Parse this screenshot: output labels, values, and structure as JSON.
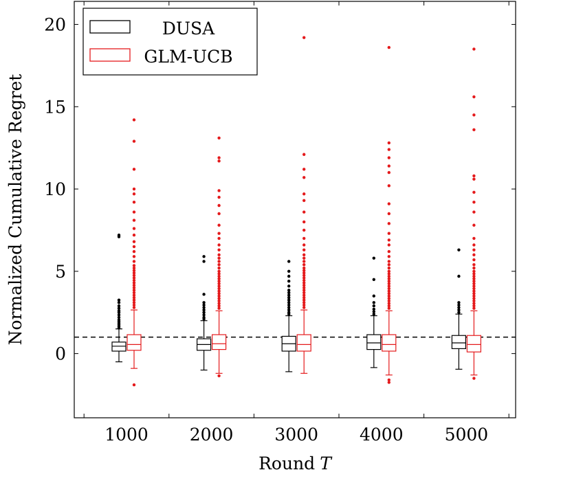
{
  "chart_data": {
    "type": "box",
    "categories": [
      "1000",
      "2000",
      "3000",
      "4000",
      "5000"
    ],
    "xlabel_text": "Round",
    "xlabel_var": "T",
    "ylabel": "Normalized Cumulative Regret",
    "ylim": [
      -3.9,
      21.4
    ],
    "yticks": [
      0,
      5,
      10,
      15,
      20
    ],
    "reference_line": 1.0,
    "legend_position": "top-left",
    "grid": false,
    "series": [
      {
        "name": "DUSA",
        "color": "#000000",
        "boxes": [
          {
            "q1": 0.15,
            "median": 0.45,
            "q3": 0.7,
            "whisker_low": -0.5,
            "whisker_high": 1.5,
            "outliers": [
              1.55,
              1.65,
              1.75,
              1.85,
              1.95,
              2.05,
              2.2,
              2.35,
              2.5,
              2.6,
              2.75,
              2.9,
              3.1,
              3.25,
              7.1,
              7.2
            ]
          },
          {
            "q1": 0.2,
            "median": 0.55,
            "q3": 0.9,
            "whisker_low": -1.0,
            "whisker_high": 2.0,
            "outliers": [
              2.1,
              2.2,
              2.35,
              2.5,
              2.65,
              2.8,
              2.95,
              3.1,
              3.6,
              5.6,
              5.9
            ]
          },
          {
            "q1": 0.15,
            "median": 0.6,
            "q3": 1.05,
            "whisker_low": -1.1,
            "whisker_high": 2.3,
            "outliers": [
              2.4,
              2.5,
              2.65,
              2.8,
              2.95,
              3.1,
              3.25,
              3.4,
              3.55,
              3.7,
              3.85,
              4.1,
              4.4,
              4.7,
              5.0,
              5.6
            ]
          },
          {
            "q1": 0.25,
            "median": 0.65,
            "q3": 1.15,
            "whisker_low": -0.85,
            "whisker_high": 2.3,
            "outliers": [
              2.4,
              2.55,
              2.7,
              2.9,
              3.1,
              3.5,
              4.5,
              5.8
            ]
          },
          {
            "q1": 0.3,
            "median": 0.65,
            "q3": 1.1,
            "whisker_low": -0.95,
            "whisker_high": 2.4,
            "outliers": [
              2.5,
              2.65,
              2.8,
              2.95,
              3.1,
              4.7,
              6.3
            ]
          }
        ]
      },
      {
        "name": "GLM-UCB",
        "color": "#e41a1c",
        "boxes": [
          {
            "q1": 0.2,
            "median": 0.55,
            "q3": 1.15,
            "whisker_low": -0.9,
            "whisker_high": 2.65,
            "outliers": [
              -1.9,
              2.8,
              2.95,
              3.1,
              3.25,
              3.4,
              3.55,
              3.7,
              3.85,
              4.0,
              4.15,
              4.3,
              4.45,
              4.6,
              4.75,
              4.9,
              5.05,
              5.2,
              5.35,
              5.6,
              5.9,
              6.2,
              6.5,
              6.8,
              7.2,
              7.6,
              8.1,
              8.6,
              9.2,
              9.7,
              10.0,
              11.2,
              12.9,
              14.2
            ]
          },
          {
            "q1": 0.25,
            "median": 0.6,
            "q3": 1.15,
            "whisker_low": -1.2,
            "whisker_high": 2.6,
            "outliers": [
              -1.35,
              2.75,
              2.9,
              3.05,
              3.2,
              3.35,
              3.5,
              3.65,
              3.8,
              3.95,
              4.1,
              4.25,
              4.4,
              4.55,
              4.7,
              4.85,
              5.0,
              5.2,
              5.4,
              5.6,
              5.8,
              6.0,
              6.3,
              6.6,
              7.0,
              7.3,
              7.8,
              8.5,
              9.0,
              9.5,
              9.9,
              11.7,
              11.9,
              13.1
            ]
          },
          {
            "q1": 0.15,
            "median": 0.55,
            "q3": 1.15,
            "whisker_low": -1.2,
            "whisker_high": 2.65,
            "outliers": [
              2.8,
              2.95,
              3.1,
              3.25,
              3.4,
              3.55,
              3.7,
              3.85,
              4.0,
              4.15,
              4.3,
              4.45,
              4.6,
              4.75,
              4.9,
              5.05,
              5.2,
              5.4,
              5.6,
              5.8,
              6.0,
              6.3,
              6.6,
              7.0,
              7.5,
              8.0,
              8.6,
              9.3,
              9.7,
              10.7,
              11.2,
              12.1,
              19.2
            ]
          },
          {
            "q1": 0.15,
            "median": 0.55,
            "q3": 1.15,
            "whisker_low": -1.3,
            "whisker_high": 2.6,
            "outliers": [
              -1.6,
              -1.75,
              2.75,
              2.9,
              3.05,
              3.2,
              3.35,
              3.5,
              3.65,
              3.8,
              3.95,
              4.1,
              4.25,
              4.4,
              4.55,
              4.7,
              4.85,
              5.0,
              5.2,
              5.4,
              5.6,
              5.9,
              6.2,
              6.6,
              6.9,
              7.3,
              7.9,
              8.5,
              9.1,
              10.2,
              11.0,
              11.4,
              11.9,
              12.4,
              12.8,
              18.6
            ]
          },
          {
            "q1": 0.1,
            "median": 0.55,
            "q3": 1.1,
            "whisker_low": -1.3,
            "whisker_high": 2.6,
            "outliers": [
              -1.5,
              2.75,
              2.9,
              3.05,
              3.2,
              3.35,
              3.5,
              3.65,
              3.8,
              3.95,
              4.1,
              4.25,
              4.4,
              4.55,
              4.7,
              4.85,
              5.0,
              5.2,
              5.4,
              5.7,
              6.0,
              6.3,
              6.6,
              7.0,
              7.8,
              8.6,
              9.2,
              9.8,
              10.6,
              10.8,
              13.6,
              14.5,
              15.6,
              18.5
            ]
          }
        ]
      }
    ]
  }
}
